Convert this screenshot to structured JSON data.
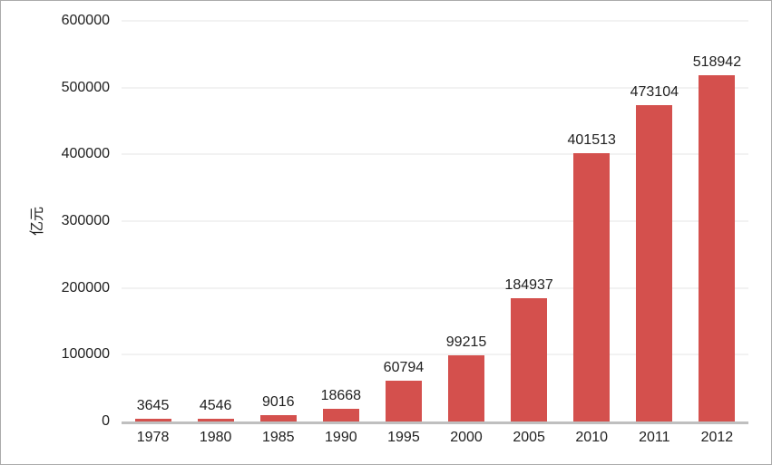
{
  "chart_data": {
    "type": "bar",
    "title": "",
    "xlabel": "",
    "ylabel": "亿元",
    "categories": [
      "1978",
      "1980",
      "1985",
      "1990",
      "1995",
      "2000",
      "2005",
      "2010",
      "2011",
      "2012"
    ],
    "values": [
      3645,
      4546,
      9016,
      18668,
      60794,
      99215,
      184937,
      401513,
      473104,
      518942
    ],
    "ylim": [
      0,
      600000
    ],
    "ytick_values": [
      0,
      100000,
      200000,
      300000,
      400000,
      500000,
      600000
    ],
    "grid": true,
    "legend_position": "none",
    "data_labels": true,
    "colors": {
      "bar": "#d4504d",
      "gridline": "#f2f2f2",
      "baseline": "#bfbfbf",
      "text": "#212121",
      "border": "#ababab",
      "background": "#ffffff"
    }
  }
}
